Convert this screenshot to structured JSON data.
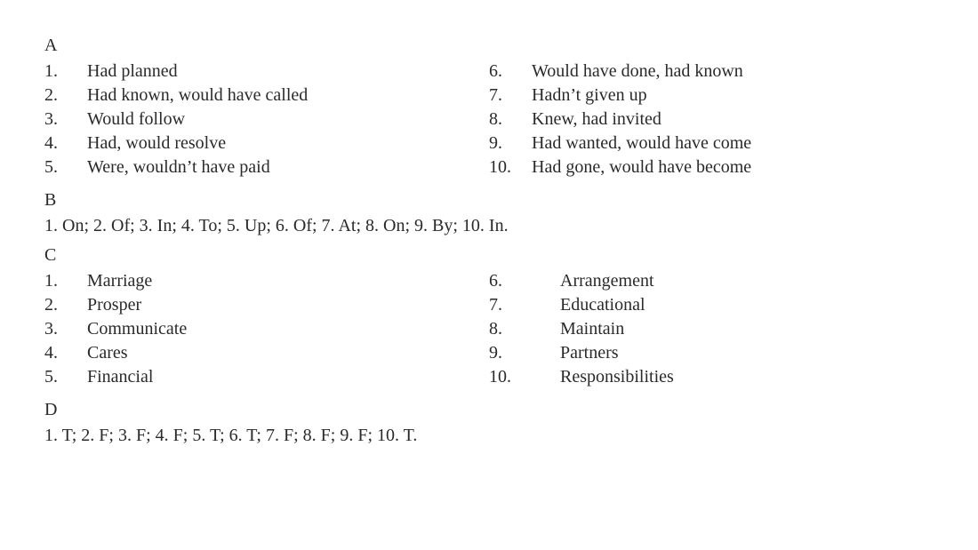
{
  "sectionA": {
    "label": "A",
    "left": [
      {
        "num": "1.",
        "text": "Had planned"
      },
      {
        "num": "2.",
        "text": "Had known, would have called"
      },
      {
        "num": "3.",
        "text": "Would follow"
      },
      {
        "num": "4.",
        "text": "Had, would resolve"
      },
      {
        "num": "5.",
        "text": "Were, wouldn’t have paid"
      }
    ],
    "right": [
      {
        "num": "6.",
        "text": "Would have done, had known"
      },
      {
        "num": "7.",
        "text": "Hadn’t given up"
      },
      {
        "num": "8.",
        "text": "Knew, had invited"
      },
      {
        "num": "9.",
        "text": "Had wanted, would have come"
      },
      {
        "num": "10.",
        "text": "Had gone, would have become"
      }
    ]
  },
  "sectionB": {
    "label": "B",
    "text": "1. On; 2. Of; 3. In; 4. To; 5. Up; 6. Of; 7. At; 8. On; 9. By; 10. In."
  },
  "sectionC": {
    "label": "C",
    "left": [
      {
        "num": "1.",
        "text": "Marriage"
      },
      {
        "num": "2.",
        "text": "Prosper"
      },
      {
        "num": "3.",
        "text": "Communicate"
      },
      {
        "num": "4.",
        "text": "Cares"
      },
      {
        "num": "5.",
        "text": "Financial"
      }
    ],
    "right": [
      {
        "num": "6.",
        "text": "Arrangement"
      },
      {
        "num": "7.",
        "text": "Educational"
      },
      {
        "num": "8.",
        "text": "Maintain"
      },
      {
        "num": "9.",
        "text": "Partners"
      },
      {
        "num": "10.",
        "text": "Responsibilities"
      }
    ]
  },
  "sectionD": {
    "label": "D",
    "text": "1. T; 2. F; 3. F; 4. F; 5. T; 6. T; 7. F; 8. F; 9. F; 10. T."
  }
}
